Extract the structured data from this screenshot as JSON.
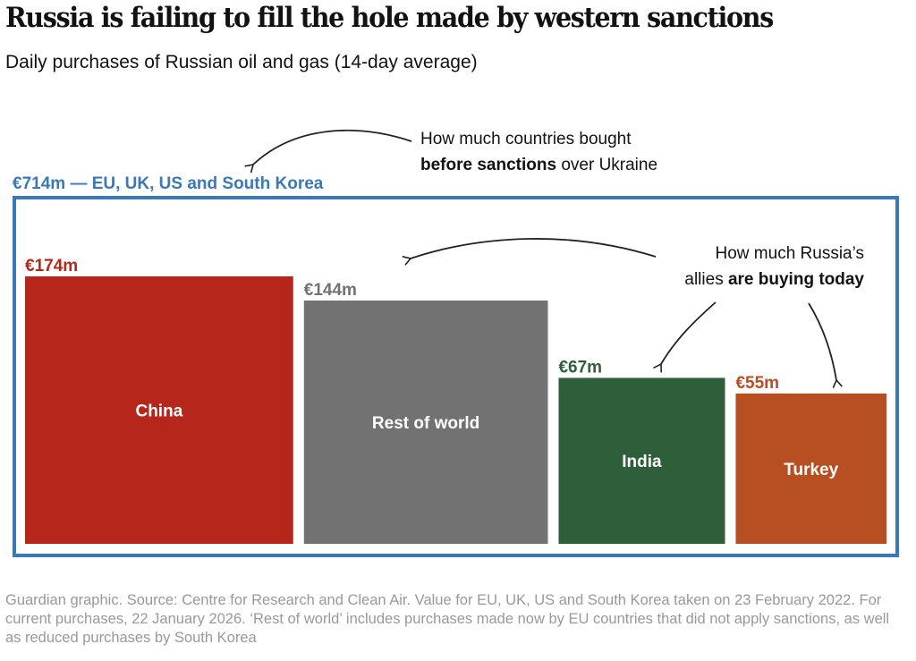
{
  "header": {
    "title": "Russia is failing to fill the hole made by western sanctions",
    "subtitle": "Daily purchases of Russian oil and gas (14-day average)"
  },
  "annotations": {
    "before": {
      "line1": "How much countries bought",
      "bold": "before sanctions",
      "rest": " over Ukraine"
    },
    "today": {
      "line1": "How much Russia’s",
      "plain": "allies ",
      "bold": "are buying today"
    }
  },
  "frame": {
    "label": "€714m — EU, UK, US and South Korea",
    "color": "#3a78b8"
  },
  "chart_data": {
    "type": "bar",
    "title": "Russia is failing to fill the hole made by western sanctions",
    "subtitle": "Daily purchases of Russian oil and gas (14-day average)",
    "unit": "€m per day",
    "reference": {
      "label": "EU, UK, US and South Korea (before sanctions)",
      "value": 714
    },
    "categories": [
      "China",
      "Rest of world",
      "India",
      "Turkey"
    ],
    "values": [
      174,
      144,
      67,
      55
    ],
    "value_labels": [
      "€174m",
      "€144m",
      "€67m",
      "€55m"
    ],
    "colors": [
      "#b7261a",
      "#727272",
      "#2e5e3a",
      "#b84f22"
    ],
    "xlabel": "",
    "ylabel": "",
    "grid": false,
    "legend": "none"
  },
  "footer": {
    "source": "Guardian graphic. Source: Centre for Research and Clean Air. Value for EU, UK, US and South Korea taken on 23 February 2022. For current purchases, 22 January 2026. ‘Rest of world’ includes purchases made now by EU countries that did not apply sanctions, as well as reduced purchases by South Korea"
  }
}
